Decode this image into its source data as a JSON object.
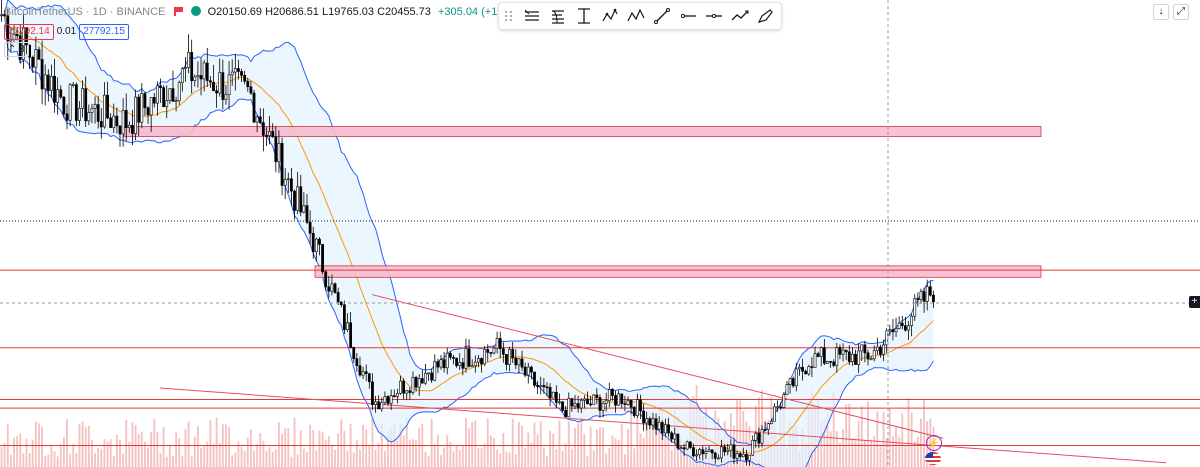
{
  "chart_data": {
    "type": "candlestick",
    "title": "Bitcoin / TetherUS · 1D · BINANCE",
    "symbol_short": "BitcoinTetherUS · 1D · BINANCE",
    "ohlc": {
      "o_label": "O",
      "o": "20150.69",
      "h_label": "H",
      "h": "20686.51",
      "l_label": "L",
      "l": "19765.03",
      "c_label": "C",
      "c": "20455.73",
      "change": "+305.04 (+1.51%)"
    },
    "bid": "27792.14",
    "spread": "0.01",
    "ask": "27792.15",
    "indicator_count": "3",
    "y_range": [
      15500,
      48000
    ],
    "series": [
      {
        "name": "",
        "kind": "close",
        "x": [
          "2021-12",
          "2022-01",
          "2022-02",
          "2022-03",
          "2022-04",
          "2022-05",
          "2022-06",
          "2022-07",
          "2022-08",
          "2022-09",
          "2022-10",
          "2022-11",
          "2022-12",
          "2023-01",
          "2023-02",
          "2023-03"
        ],
        "values": [
          47000,
          41000,
          39500,
          43000,
          41500,
          31500,
          20000,
          22500,
          23800,
          19500,
          20400,
          16800,
          16500,
          23000,
          23300,
          27800
        ]
      }
    ],
    "horizontal_levels": [
      29200,
      23800,
      20200,
      19600,
      17000
    ],
    "zones": [
      {
        "from": 39200,
        "to": 38500
      },
      {
        "from": 29500,
        "to": 28700
      }
    ],
    "trendlines": [
      {
        "from": [
          "2022-06",
          27500
        ],
        "to": [
          "2023-03-15",
          17500
        ]
      },
      {
        "from": [
          "2022-01",
          21000
        ],
        "to": [
          "2023-05-10",
          15800
        ]
      }
    ],
    "colors": {
      "up": "#089981",
      "down": "#f23645",
      "candle_body": "#000000",
      "bollinger_band": "#2962ff",
      "bollinger_fill": "#e3f2fd",
      "basis": "#ff9800",
      "levels": "#e53935",
      "zones_fill": "#f8bbd0",
      "trendline": "#e05060",
      "volume": "#ef9a9a"
    }
  },
  "toolbar": {
    "tools": [
      "lines-icon",
      "fib-icon",
      "measure-icon",
      "pattern-icon",
      "abcd-icon",
      "line-icon",
      "h-ray-icon",
      "h-line-icon",
      "path-icon",
      "brush-icon"
    ]
  },
  "right_buttons": {
    "down": "↓",
    "expand": "⤢"
  }
}
